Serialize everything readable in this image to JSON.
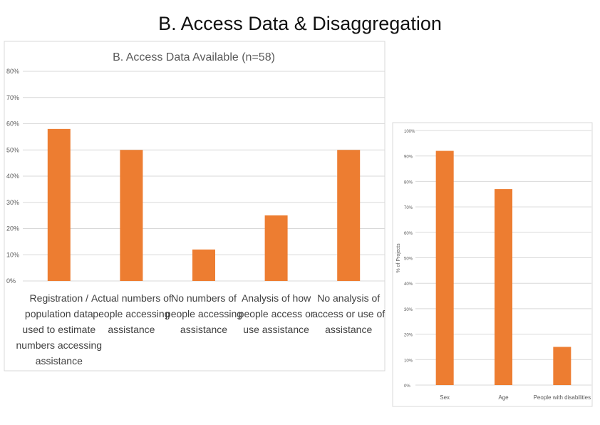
{
  "slide": {
    "title": "B.  Access Data & Disaggregation"
  },
  "chart_data": [
    {
      "type": "bar",
      "title": "B. Access Data Available (n=58)",
      "categories": [
        [
          "Registration /",
          "population data",
          "used to estimate",
          "numbers accessing",
          "assistance"
        ],
        [
          "Actual numbers of",
          "people accessing",
          "assistance"
        ],
        [
          "No numbers of",
          "people accessing",
          "assistance"
        ],
        [
          "Analysis of how",
          "people access or",
          "use assistance"
        ],
        [
          "No analysis of",
          "access or use of",
          "assistance"
        ]
      ],
      "values": [
        58,
        50,
        12,
        25,
        50
      ],
      "ylim": [
        0,
        80
      ],
      "yticks": [
        "0%",
        "10%",
        "20%",
        "30%",
        "40%",
        "50%",
        "60%",
        "70%",
        "80%"
      ],
      "ylabel": "",
      "xlabel": "",
      "grid": true,
      "color": "#ED7D31"
    },
    {
      "type": "bar",
      "title": "",
      "categories": [
        "Sex",
        "Age",
        "People with disabilities"
      ],
      "values": [
        92,
        77,
        15
      ],
      "ylim": [
        0,
        100
      ],
      "yticks": [
        "0%",
        "10%",
        "20%",
        "30%",
        "40%",
        "50%",
        "60%",
        "70%",
        "80%",
        "90%",
        "100%"
      ],
      "ylabel": "% of Projects",
      "xlabel": "",
      "grid": true,
      "color": "#ED7D31"
    }
  ]
}
